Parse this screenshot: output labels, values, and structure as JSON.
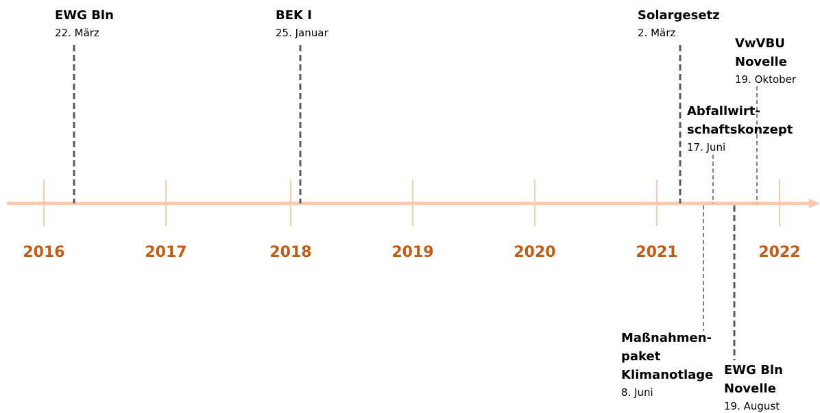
{
  "years": [
    "2016",
    "2017",
    "2018",
    "2019",
    "2020",
    "2021",
    "2022"
  ],
  "events": [
    {
      "title": [
        "EWG Bln"
      ],
      "date": "22. März"
    },
    {
      "title": [
        "BEK I"
      ],
      "date": "25. Januar"
    },
    {
      "title": [
        "Solargesetz"
      ],
      "date": "2. März"
    },
    {
      "title": [
        "VwVBU",
        "Novelle"
      ],
      "date": "19. Oktober"
    },
    {
      "title": [
        "Abfallwirt-",
        "schaftskonzept"
      ],
      "date": "17. Juni"
    },
    {
      "title": [
        "Maßnahmen-",
        "paket",
        "Klimanotlage"
      ],
      "date": "8. Juni"
    },
    {
      "title": [
        "EWG Bln",
        "Novelle"
      ],
      "date": "19. August"
    }
  ]
}
